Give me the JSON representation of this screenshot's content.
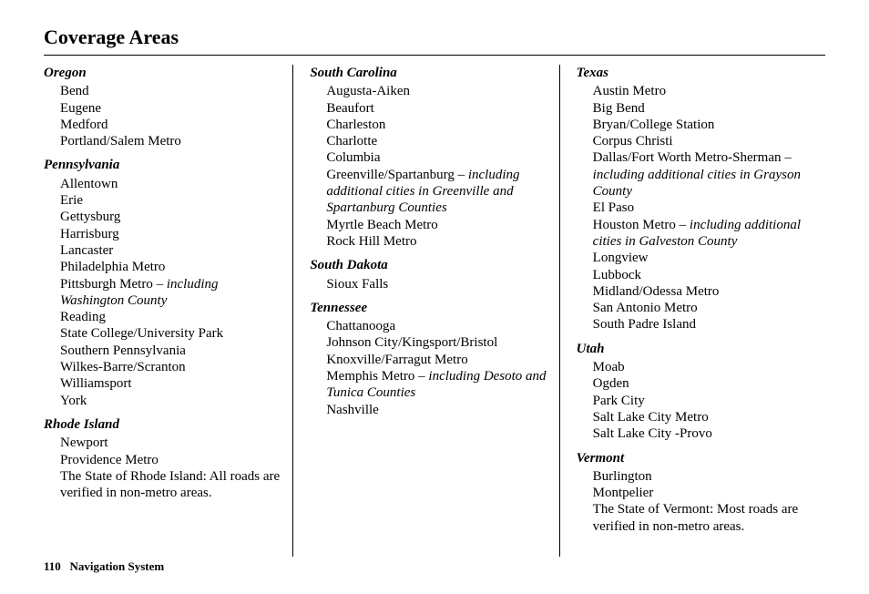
{
  "title": "Coverage Areas",
  "footer": {
    "page_number": "110",
    "label": "Navigation System"
  },
  "columns": [
    {
      "states": [
        {
          "name": "Oregon",
          "cities": [
            {
              "plain": "Bend"
            },
            {
              "plain": "Eugene"
            },
            {
              "plain": "Medford"
            },
            {
              "plain": "Portland/Salem Metro"
            }
          ]
        },
        {
          "name": "Pennsylvania",
          "cities": [
            {
              "plain": "Allentown"
            },
            {
              "plain": "Erie"
            },
            {
              "plain": "Gettysburg"
            },
            {
              "plain": "Harrisburg"
            },
            {
              "plain": "Lancaster"
            },
            {
              "plain": "Philadelphia Metro"
            },
            {
              "plain": "Pittsburgh Metro ",
              "dash": "– ",
              "italic": "including Washington County"
            },
            {
              "plain": "Reading"
            },
            {
              "plain": "State College/University Park"
            },
            {
              "plain": "Southern Pennsylvania"
            },
            {
              "plain": "Wilkes-Barre/Scranton"
            },
            {
              "plain": "Williamsport"
            },
            {
              "plain": "York"
            }
          ]
        },
        {
          "name": "Rhode Island",
          "cities": [
            {
              "plain": "Newport"
            },
            {
              "plain": "Providence Metro"
            },
            {
              "plain": "The State of Rhode Island: All roads are verified in non-metro areas."
            }
          ]
        }
      ]
    },
    {
      "states": [
        {
          "name": "South Carolina",
          "cities": [
            {
              "plain": "Augusta-Aiken"
            },
            {
              "plain": "Beaufort"
            },
            {
              "plain": "Charleston"
            },
            {
              "plain": "Charlotte"
            },
            {
              "plain": "Columbia"
            },
            {
              "plain": "Greenville/Spartanburg ",
              "dash": "– ",
              "italic": "including additional cities in Greenville and Spartanburg Counties"
            },
            {
              "plain": "Myrtle Beach Metro"
            },
            {
              "plain": "Rock Hill Metro"
            }
          ]
        },
        {
          "name": "South Dakota",
          "cities": [
            {
              "plain": "Sioux Falls"
            }
          ]
        },
        {
          "name": "Tennessee",
          "cities": [
            {
              "plain": "Chattanooga"
            },
            {
              "plain": "Johnson City/Kingsport/Bristol"
            },
            {
              "plain": "Knoxville/Farragut Metro"
            },
            {
              "plain": "Memphis Metro ",
              "dash": "– ",
              "italic": "including Desoto and Tunica Counties"
            },
            {
              "plain": "Nashville"
            }
          ]
        }
      ]
    },
    {
      "states": [
        {
          "name": "Texas",
          "cities": [
            {
              "plain": "Austin Metro"
            },
            {
              "plain": "Big Bend"
            },
            {
              "plain": "Bryan/College Station"
            },
            {
              "plain": "Corpus Christi"
            },
            {
              "plain": "Dallas/Fort Worth Metro-Sherman ",
              "dash": "– ",
              "italic": "including additional cities in Grayson County"
            },
            {
              "plain": "El Paso"
            },
            {
              "plain": "Houston Metro ",
              "dash": "– ",
              "italic": "including additional cities in Galveston County"
            },
            {
              "plain": "Longview"
            },
            {
              "plain": "Lubbock"
            },
            {
              "plain": "Midland/Odessa Metro"
            },
            {
              "plain": "San Antonio Metro"
            },
            {
              "plain": "South Padre Island"
            }
          ]
        },
        {
          "name": "Utah",
          "cities": [
            {
              "plain": "Moab"
            },
            {
              "plain": "Ogden"
            },
            {
              "plain": "Park City"
            },
            {
              "plain": "Salt Lake City Metro"
            },
            {
              "plain": "Salt Lake City -Provo"
            }
          ]
        },
        {
          "name": "Vermont",
          "cities": [
            {
              "plain": "Burlington"
            },
            {
              "plain": "Montpelier"
            },
            {
              "plain": "The State of Vermont: Most roads are verified in non-metro areas."
            }
          ]
        }
      ]
    }
  ]
}
